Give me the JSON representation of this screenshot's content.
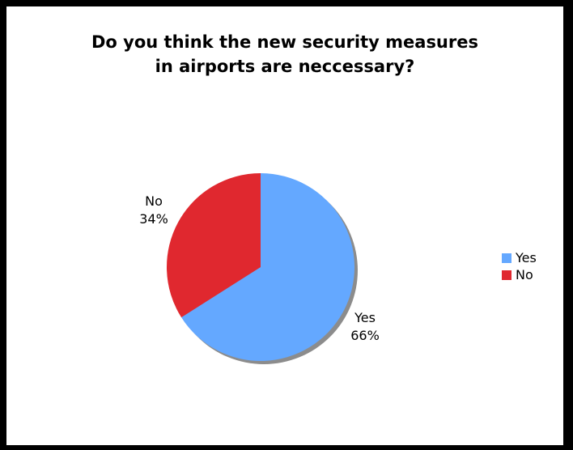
{
  "chart_data": {
    "type": "pie",
    "title": [
      "Do you think the new security measures",
      "in airports are neccessary?"
    ],
    "categories": [
      "Yes",
      "No"
    ],
    "values": [
      66,
      34
    ],
    "value_labels": [
      "66%",
      "34%"
    ],
    "colors": [
      "#64a8ff",
      "#e0282f"
    ],
    "legend_position": "right"
  }
}
